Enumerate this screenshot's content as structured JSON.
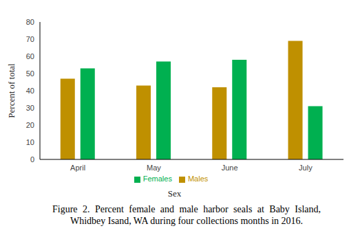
{
  "chart_data": {
    "type": "bar",
    "categories": [
      "April",
      "May",
      "June",
      "July"
    ],
    "series": [
      {
        "name": "Males",
        "color": "#BF9000",
        "values": [
          47,
          43,
          42,
          69
        ]
      },
      {
        "name": "Females",
        "color": "#00B050",
        "values": [
          53,
          57,
          58,
          31
        ]
      }
    ],
    "ylim": [
      0,
      80
    ],
    "yticks": [
      0,
      10,
      20,
      30,
      40,
      50,
      60,
      70,
      80
    ],
    "y_label": "Percent of total",
    "x_label": "Sex",
    "caption": "Figure  2. Percent female and male harbor seals at Baby Island, Whidbey Isand, WA during four collections months in 2016.",
    "legend": "bottom",
    "grid": false
  }
}
